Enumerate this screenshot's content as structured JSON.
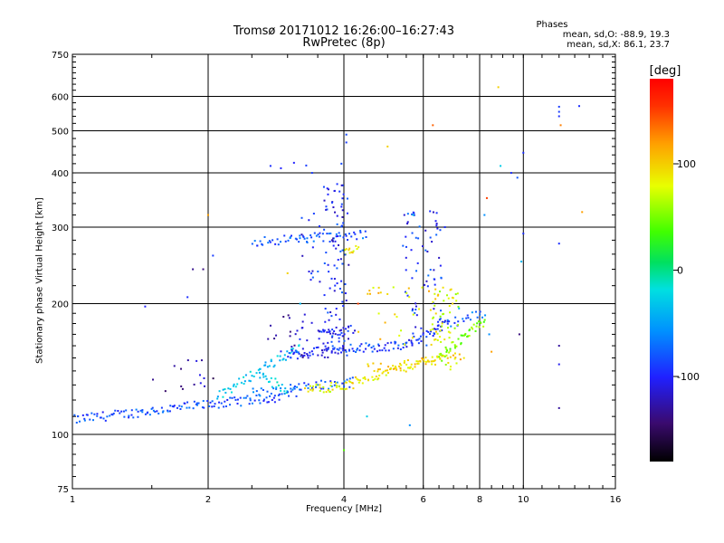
{
  "header": {
    "title_line1": "Tromsø 20171012 16:26:00–16:27:43",
    "title_line2": "RwPretec (8p)"
  },
  "stats": {
    "heading": "Phases",
    "line_o": "mean, sd,O: -88.9, 19.3",
    "line_x": "mean, sd,X: 86.1, 23.7"
  },
  "colorbar": {
    "label": "[deg]",
    "min": -180,
    "max": 180,
    "ticks": [
      100,
      0,
      -100
    ],
    "tick_labels": [
      "100",
      "0",
      "-100"
    ]
  },
  "chart_data": {
    "type": "scatter",
    "title": "Tromsø 20171012 16:26:00–16:27:43",
    "subtitle": "RwPretec (8p)",
    "xlabel": "Frequency [MHz]",
    "ylabel": "Stationary phase Virtual Height [km]",
    "x_scale": "log",
    "y_scale": "log",
    "xlim": [
      1,
      16
    ],
    "ylim": [
      75,
      750
    ],
    "x_ticks": [
      1,
      2,
      4,
      6,
      8,
      10,
      16
    ],
    "x_tick_labels": [
      "1",
      "2",
      "4",
      "6",
      "8",
      "10",
      "16"
    ],
    "y_ticks": [
      75,
      100,
      200,
      300,
      400,
      500,
      600,
      750
    ],
    "y_tick_labels": [
      "75",
      "100",
      "200",
      "300",
      "400",
      "500",
      "600",
      "750"
    ],
    "grid": true,
    "color_by": "phase [deg]",
    "traces": [
      {
        "x_start": 1.0,
        "x_end": 2.9,
        "y_start": 108,
        "y_end": 122,
        "phase": -85,
        "n": 130
      },
      {
        "x_start": 2.1,
        "x_end": 3.2,
        "y_start": 122,
        "y_end": 158,
        "phase": -35,
        "n": 55
      },
      {
        "x_start": 2.6,
        "x_end": 3.0,
        "y_start": 138,
        "y_end": 125,
        "phase": -30,
        "n": 20
      },
      {
        "x_start": 2.5,
        "x_end": 3.2,
        "y_start": 125,
        "y_end": 125,
        "phase": -75,
        "n": 20
      },
      {
        "x_start": 3.0,
        "x_end": 4.0,
        "y_start": 152,
        "y_end": 158,
        "phase": -95,
        "n": 40
      },
      {
        "x_start": 4.0,
        "x_end": 5.5,
        "y_start": 158,
        "y_end": 160,
        "phase": -90,
        "n": 45
      },
      {
        "x_start": 5.5,
        "x_end": 6.8,
        "y_start": 160,
        "y_end": 180,
        "phase": -95,
        "n": 35
      },
      {
        "x_start": 6.8,
        "x_end": 8.2,
        "y_start": 180,
        "y_end": 190,
        "phase": -75,
        "n": 20
      },
      {
        "x_start": 3.0,
        "x_end": 4.2,
        "y_start": 128,
        "y_end": 132,
        "phase": -80,
        "n": 35
      },
      {
        "x_start": 3.3,
        "x_end": 4.2,
        "y_start": 127,
        "y_end": 130,
        "phase": 85,
        "n": 35
      },
      {
        "x_start": 4.2,
        "x_end": 6.5,
        "y_start": 132,
        "y_end": 150,
        "phase": 90,
        "n": 60
      },
      {
        "x_start": 6.5,
        "x_end": 8.2,
        "y_start": 150,
        "y_end": 182,
        "phase": 50,
        "n": 45
      },
      {
        "x_start": 4.5,
        "x_end": 7.4,
        "y_start": 142,
        "y_end": 150,
        "phase": 105,
        "n": 40
      },
      {
        "x_start": 2.5,
        "x_end": 4.5,
        "y_start": 278,
        "y_end": 288,
        "phase": -80,
        "n": 60
      },
      {
        "x_start": 4.0,
        "x_end": 4.3,
        "y_start": 265,
        "y_end": 270,
        "phase": 90,
        "n": 12
      },
      {
        "x_start": 3.5,
        "x_end": 4.2,
        "y_start": 170,
        "y_end": 175,
        "phase": -100,
        "n": 30
      }
    ],
    "clusters": [
      {
        "x": [
          3.6,
          4.1
        ],
        "y": [
          150,
          380
        ],
        "phase": -100,
        "n": 90
      },
      {
        "x": [
          5.4,
          6.6
        ],
        "y": [
          160,
          330
        ],
        "phase": -95,
        "n": 70
      },
      {
        "x": [
          6.2,
          7.2
        ],
        "y": [
          140,
          220
        ],
        "phase": 75,
        "n": 50
      },
      {
        "x": [
          4.3,
          6.5
        ],
        "y": [
          160,
          220
        ],
        "phase": 95,
        "n": 35
      },
      {
        "x": [
          2.7,
          3.6
        ],
        "y": [
          150,
          190
        ],
        "phase": -115,
        "n": 30
      },
      {
        "x": [
          3.1,
          4.0
        ],
        "y": [
          220,
          330
        ],
        "phase": -100,
        "n": 30
      },
      {
        "x": [
          1.5,
          2.1
        ],
        "y": [
          120,
          150
        ],
        "phase": -130,
        "n": 15
      }
    ],
    "isolated_points": [
      {
        "x": 2.75,
        "y": 415,
        "phase": -95
      },
      {
        "x": 2.9,
        "y": 410,
        "phase": -100
      },
      {
        "x": 3.1,
        "y": 422,
        "phase": -100
      },
      {
        "x": 3.3,
        "y": 416,
        "phase": -90
      },
      {
        "x": 3.95,
        "y": 420,
        "phase": -85
      },
      {
        "x": 4.05,
        "y": 470,
        "phase": -90
      },
      {
        "x": 4.05,
        "y": 490,
        "phase": -85
      },
      {
        "x": 5.0,
        "y": 460,
        "phase": 100
      },
      {
        "x": 6.3,
        "y": 515,
        "phase": 140
      },
      {
        "x": 6.7,
        "y": 300,
        "phase": -95
      },
      {
        "x": 5.7,
        "y": 320,
        "phase": -30
      },
      {
        "x": 8.8,
        "y": 630,
        "phase": 100
      },
      {
        "x": 8.9,
        "y": 415,
        "phase": -30
      },
      {
        "x": 9.4,
        "y": 400,
        "phase": -95
      },
      {
        "x": 9.7,
        "y": 390,
        "phase": -80
      },
      {
        "x": 10.0,
        "y": 445,
        "phase": -95
      },
      {
        "x": 10.0,
        "y": 290,
        "phase": -95
      },
      {
        "x": 9.9,
        "y": 250,
        "phase": -40
      },
      {
        "x": 8.3,
        "y": 350,
        "phase": 150
      },
      {
        "x": 8.2,
        "y": 320,
        "phase": -60
      },
      {
        "x": 12.0,
        "y": 568,
        "phase": -90
      },
      {
        "x": 12.0,
        "y": 553,
        "phase": -90
      },
      {
        "x": 12.0,
        "y": 540,
        "phase": -95
      },
      {
        "x": 12.1,
        "y": 515,
        "phase": 130
      },
      {
        "x": 13.3,
        "y": 570,
        "phase": -95
      },
      {
        "x": 12.0,
        "y": 275,
        "phase": -95
      },
      {
        "x": 13.5,
        "y": 325,
        "phase": 120
      },
      {
        "x": 12.0,
        "y": 160,
        "phase": -130
      },
      {
        "x": 12.0,
        "y": 145,
        "phase": -105
      },
      {
        "x": 12.0,
        "y": 115,
        "phase": -130
      },
      {
        "x": 9.8,
        "y": 170,
        "phase": -140
      },
      {
        "x": 8.4,
        "y": 170,
        "phase": -60
      },
      {
        "x": 8.5,
        "y": 155,
        "phase": 120
      },
      {
        "x": 7.2,
        "y": 195,
        "phase": -40
      },
      {
        "x": 1.85,
        "y": 240,
        "phase": -135
      },
      {
        "x": 1.95,
        "y": 240,
        "phase": -140
      },
      {
        "x": 2.0,
        "y": 320,
        "phase": 120
      },
      {
        "x": 1.45,
        "y": 197,
        "phase": -100
      },
      {
        "x": 1.8,
        "y": 207,
        "phase": -95
      },
      {
        "x": 2.05,
        "y": 258,
        "phase": -90
      },
      {
        "x": 4.0,
        "y": 92,
        "phase": 40
      },
      {
        "x": 5.6,
        "y": 105,
        "phase": -60
      },
      {
        "x": 4.5,
        "y": 110,
        "phase": -30
      },
      {
        "x": 4.3,
        "y": 200,
        "phase": 150
      },
      {
        "x": 3.0,
        "y": 235,
        "phase": 100
      },
      {
        "x": 3.2,
        "y": 200,
        "phase": -40
      },
      {
        "x": 3.4,
        "y": 400,
        "phase": -90
      }
    ]
  }
}
